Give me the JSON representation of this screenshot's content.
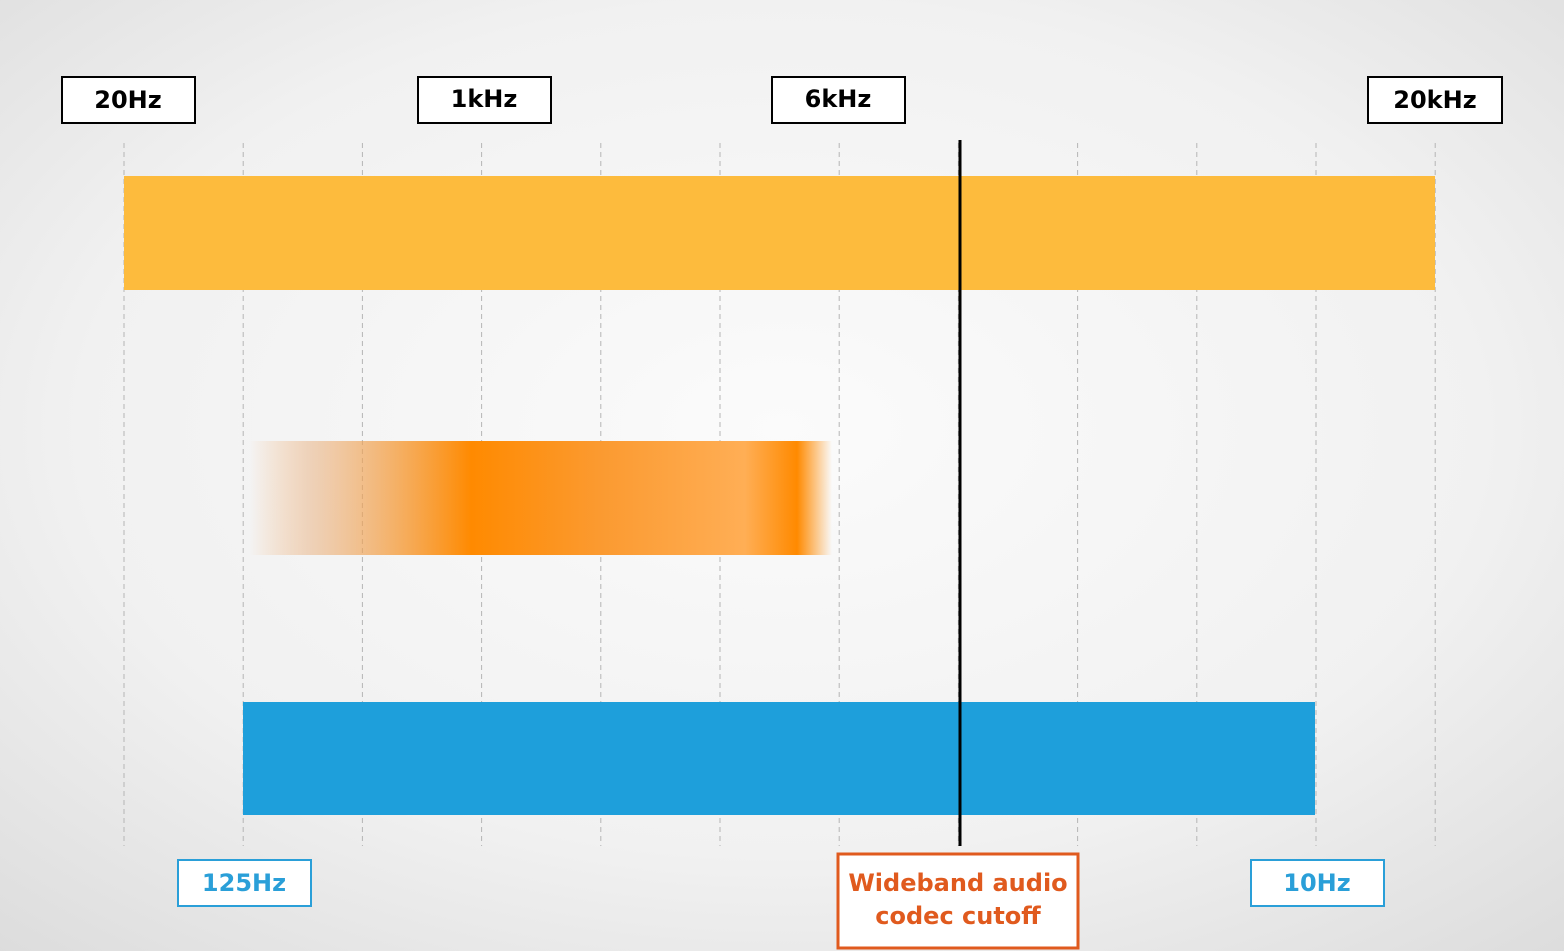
{
  "top_labels": [
    "20Hz",
    "1kHz",
    "6kHz",
    "20kHz"
  ],
  "bottom_labels": [
    "125Hz",
    "10Hz"
  ],
  "cutoff_label": [
    "Wideband audio",
    "codec cutoff"
  ]
}
